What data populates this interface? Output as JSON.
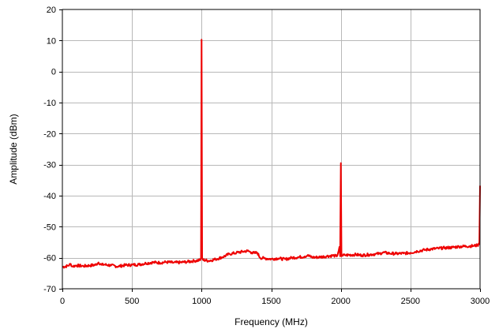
{
  "chart_data": {
    "type": "line",
    "title": "",
    "xlabel": "Frequency (MHz)",
    "ylabel": "Amplitude (dBm)",
    "xlim": [
      0,
      3000
    ],
    "ylim": [
      -70,
      20
    ],
    "x_ticks": [
      0,
      500,
      1000,
      1500,
      2000,
      2500,
      3000
    ],
    "y_ticks": [
      20,
      10,
      0,
      -10,
      -20,
      -30,
      -40,
      -50,
      -60,
      -70
    ],
    "grid": true,
    "legend": "none",
    "series": [
      {
        "color": "#ee0000",
        "x": [
          0,
          40,
          60,
          70,
          100,
          150,
          200,
          240,
          260,
          280,
          300,
          350,
          400,
          450,
          500,
          550,
          600,
          650,
          700,
          750,
          800,
          850,
          900,
          950,
          990,
          996,
          1000,
          1004,
          1010,
          1050,
          1100,
          1150,
          1200,
          1250,
          1300,
          1330,
          1360,
          1380,
          1400,
          1420,
          1450,
          1500,
          1550,
          1600,
          1650,
          1700,
          1740,
          1760,
          1800,
          1850,
          1900,
          1950,
          1970,
          1980,
          1990,
          1995,
          2000,
          2005,
          2010,
          2030,
          2100,
          2150,
          2200,
          2250,
          2280,
          2300,
          2350,
          2400,
          2450,
          2500,
          2550,
          2600,
          2650,
          2700,
          2750,
          2800,
          2850,
          2900,
          2950,
          2980,
          2995,
          3000
        ],
        "y": [
          -63,
          -62.6,
          -62,
          -62.8,
          -62.5,
          -62.7,
          -62.5,
          -62.3,
          -61.5,
          -62.3,
          -62.2,
          -62.5,
          -62.8,
          -62.4,
          -62.3,
          -62.2,
          -61.8,
          -61.5,
          -61.6,
          -61.4,
          -61.6,
          -61.5,
          -61.3,
          -61,
          -60.8,
          -60,
          10.3,
          -60,
          -60.7,
          -61,
          -60.5,
          -59.8,
          -58.8,
          -58.4,
          -58,
          -57.8,
          -58.3,
          -58.5,
          -58.4,
          -60,
          -60.2,
          -60.4,
          -60.2,
          -60.5,
          -60,
          -59.8,
          -59.6,
          -59.3,
          -59.9,
          -59.8,
          -59.5,
          -59.3,
          -59.6,
          -58.5,
          -56.5,
          -59.5,
          -29.5,
          -59.5,
          -59.3,
          -59.2,
          -59,
          -59.2,
          -59,
          -58.8,
          -58.7,
          -58.3,
          -58.6,
          -58.7,
          -58.6,
          -58.4,
          -57.9,
          -57.5,
          -57.2,
          -57,
          -56.8,
          -56.7,
          -56.4,
          -56.3,
          -56.2,
          -56,
          -55.6,
          -36.8
        ]
      }
    ]
  }
}
